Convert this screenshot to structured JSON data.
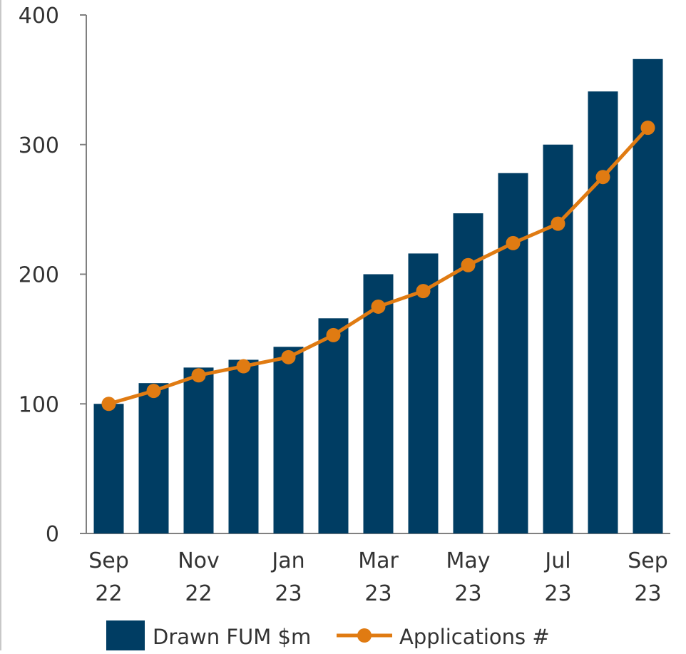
{
  "chart_data": {
    "type": "bar",
    "categories": [
      "Sep 22",
      "Oct 22",
      "Nov 22",
      "Dec 22",
      "Jan 23",
      "Feb 23",
      "Mar 23",
      "Apr 23",
      "May 23",
      "Jun 23",
      "Jul 23",
      "Aug 23",
      "Sep 23"
    ],
    "x_tick_labels": [
      {
        "index": 0,
        "line1": "Sep",
        "line2": "22"
      },
      {
        "index": 2,
        "line1": "Nov",
        "line2": "22"
      },
      {
        "index": 4,
        "line1": "Jan",
        "line2": "23"
      },
      {
        "index": 6,
        "line1": "Mar",
        "line2": "23"
      },
      {
        "index": 8,
        "line1": "May",
        "line2": "23"
      },
      {
        "index": 10,
        "line1": "Jul",
        "line2": "23"
      },
      {
        "index": 12,
        "line1": "Sep",
        "line2": "23"
      }
    ],
    "series": [
      {
        "name": "Drawn FUM $m",
        "type": "bar",
        "color": "#003d63",
        "values": [
          100,
          116,
          128,
          134,
          144,
          166,
          200,
          216,
          247,
          278,
          300,
          341,
          366
        ]
      },
      {
        "name": "Applications #",
        "type": "line",
        "color": "#e07b12",
        "values": [
          100,
          110,
          122,
          129,
          136,
          153,
          175,
          187,
          207,
          224,
          239,
          275,
          313
        ]
      }
    ],
    "ylim": [
      0,
      400
    ],
    "yticks": [
      0,
      100,
      200,
      300,
      400
    ],
    "grid": false,
    "legend_position": "bottom"
  }
}
